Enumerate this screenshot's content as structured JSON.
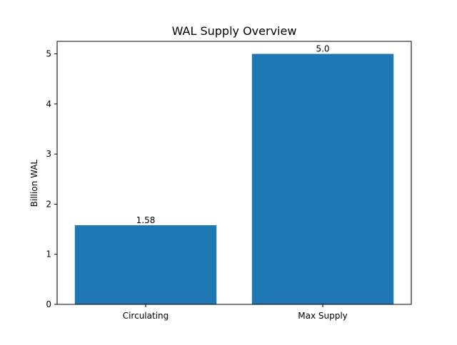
{
  "chart_data": {
    "type": "bar",
    "title": "WAL Supply Overview",
    "xlabel": "",
    "ylabel": "Billion WAL",
    "categories": [
      "Circulating",
      "Max Supply"
    ],
    "values": [
      1.58,
      5.0
    ],
    "value_labels": [
      "1.58",
      "5.0"
    ],
    "ylim": [
      0,
      5.25
    ],
    "yticks": [
      0,
      1,
      2,
      3,
      4,
      5
    ],
    "grid": false,
    "legend": "none",
    "bar_color": "#1f77b4"
  }
}
